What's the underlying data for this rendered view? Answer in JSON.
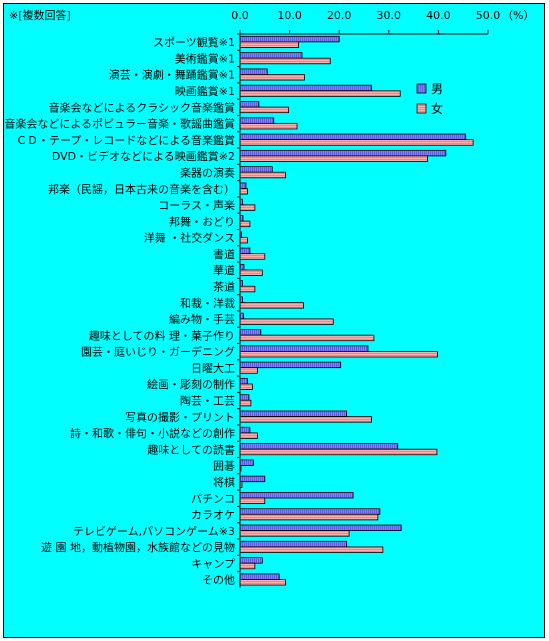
{
  "chart_data": {
    "type": "bar",
    "orientation": "horizontal",
    "note": "※[複数回答]",
    "unit_label": "（%）",
    "xlim": [
      0,
      50
    ],
    "x_ticks": [
      "0.0",
      "10.0",
      "20.0",
      "30.0",
      "40.0",
      "50.0"
    ],
    "grid": false,
    "legend_position": "right",
    "categories": [
      "スポーツ観覧※1",
      "美術鑑賞※1",
      "演芸・演劇・舞踊鑑賞※1",
      "映画鑑賞※1",
      "音楽会などによるクラシック音楽鑑賞",
      "音楽会などによるポピュラー音楽・歌謡曲鑑賞",
      "ＣＤ・テープ・レコードなどによる音楽鑑賞",
      "DVD・ビデオなどによる映画鑑賞※2",
      "楽器の演奏",
      "邦楽（民謡，日本古来の音楽を含む）",
      "コーラス・声楽",
      "邦舞・おどり",
      "洋舞 ・社交ダンス",
      "書道",
      "華道",
      "茶道",
      "和裁・洋裁",
      "編み物・手芸",
      "趣味としての料 理・菓子作り",
      "園芸・庭いじり・ガーデニング",
      "日曜大工",
      "絵画・彫刻の制作",
      "陶芸・工芸",
      "写真の撮影・プリント",
      "詩・和歌・俳句・小説などの創作",
      "趣味としての読書",
      "囲碁",
      "将棋",
      "パチンコ",
      "カラオケ",
      "テレビゲーム,パソコンゲーム※3",
      "遊 園 地，動植物園，水族館などの見物",
      "キャンプ",
      "その他"
    ],
    "series": [
      {
        "name": "男",
        "color": "#8080ff",
        "values": [
          20.0,
          12.5,
          5.5,
          26.5,
          3.8,
          6.8,
          45.5,
          41.5,
          6.5,
          1.2,
          0.5,
          0.6,
          0.3,
          2.0,
          0.8,
          0.5,
          0.5,
          0.7,
          4.2,
          25.8,
          20.3,
          1.5,
          1.8,
          21.5,
          2.0,
          31.8,
          2.7,
          5.0,
          22.8,
          28.2,
          32.5,
          21.5,
          4.5,
          7.9
        ]
      },
      {
        "name": "女",
        "color": "#ff8080",
        "values": [
          11.8,
          18.2,
          13.0,
          32.3,
          9.8,
          11.5,
          47.0,
          37.8,
          9.2,
          1.5,
          3.0,
          2.0,
          1.5,
          5.0,
          4.5,
          3.0,
          12.8,
          18.8,
          27.0,
          39.8,
          3.5,
          2.5,
          2.2,
          26.5,
          3.5,
          39.7,
          0.2,
          0.4,
          5.0,
          27.8,
          22.0,
          28.8,
          3.0,
          9.2
        ]
      }
    ]
  }
}
